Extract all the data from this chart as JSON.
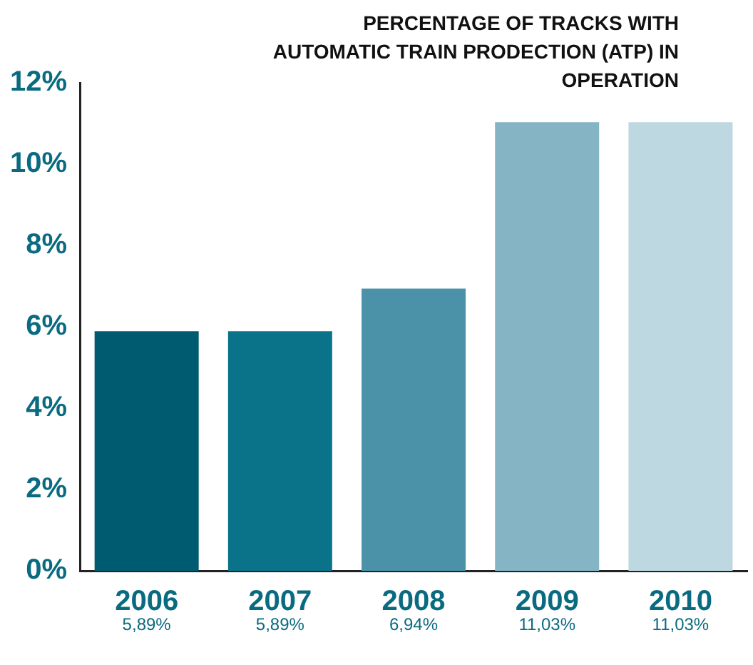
{
  "chart_data": {
    "type": "bar",
    "title": "PERCENTAGE OF TRACKS WITH AUTOMATIC TRAIN PRODECTION (ATP) IN OPERATION",
    "categories": [
      "2006",
      "2007",
      "2008",
      "2009",
      "2010"
    ],
    "values": [
      5.89,
      5.89,
      6.94,
      11.03,
      11.03
    ],
    "colors": [
      "#005a70",
      "#0a7389",
      "#4b92a8",
      "#85b4c4",
      "#bed8e1"
    ],
    "value_labels": [
      "5,89%",
      "5,89%",
      "6,94%",
      "11,03%",
      "11,03%"
    ],
    "ylim": [
      0,
      12
    ],
    "yticks": [
      {
        "value": 0,
        "label": "0%"
      },
      {
        "value": 2,
        "label": "2%"
      },
      {
        "value": 4,
        "label": "4%"
      },
      {
        "value": 6,
        "label": "6%"
      },
      {
        "value": 8,
        "label": "8%"
      },
      {
        "value": 10,
        "label": "10%"
      },
      {
        "value": 12,
        "label": "12%"
      }
    ],
    "grid": false,
    "legend": false
  }
}
